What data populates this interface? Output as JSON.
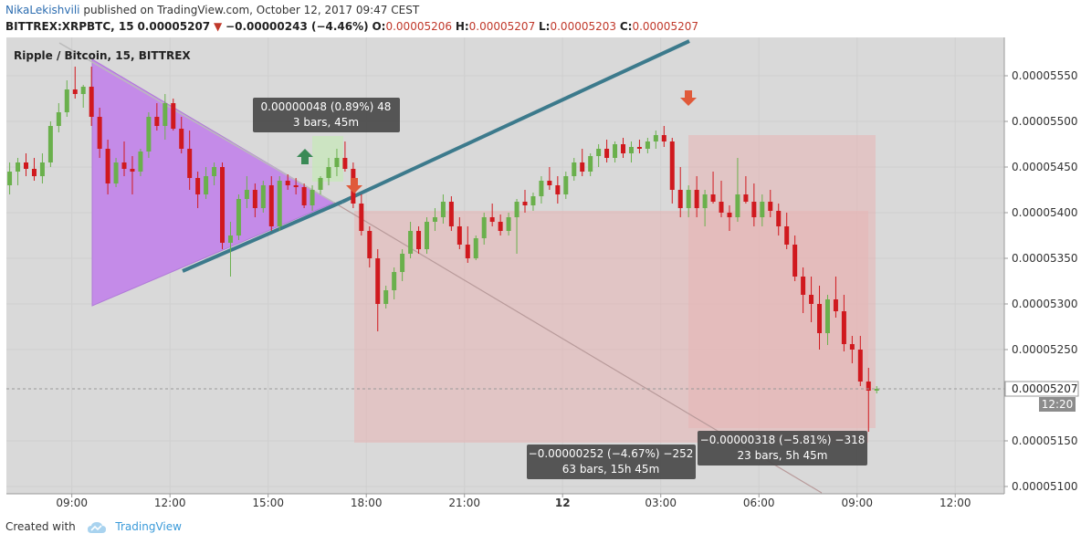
{
  "header": {
    "author": "NikaLekishvili",
    "published": "published on TradingView.com, October 12, 2017 09:47 CEST",
    "symbol": "BITTREX:XRPBTC, 15",
    "last": "0.00005207",
    "change": "−0.00000243 (−4.46%)",
    "o_label": "O:",
    "o_value": "0.00005206",
    "h_label": "H:",
    "h_value": "0.00005207",
    "l_label": "L:",
    "l_value": "0.00005203",
    "c_label": "C:",
    "c_value": "0.00005207"
  },
  "chart_data": {
    "type": "candlestick",
    "title": "Ripple / Bitcoin, 15, BITTREX",
    "y_ticks": [
      "0.00005550",
      "0.00005500",
      "0.00005450",
      "0.00005400",
      "0.00005350",
      "0.00005300",
      "0.00005250",
      "0.00005150",
      "0.00005100"
    ],
    "y_tick_values": [
      5550,
      5500,
      5450,
      5400,
      5350,
      5300,
      5250,
      5150,
      5100
    ],
    "ylim": [
      5092,
      5592
    ],
    "x_ticks": [
      {
        "label": "09:00",
        "t": 9.0
      },
      {
        "label": "12:00",
        "t": 12.0
      },
      {
        "label": "15:00",
        "t": 15.0
      },
      {
        "label": "18:00",
        "t": 18.0
      },
      {
        "label": "21:00",
        "t": 21.0
      },
      {
        "label": "12",
        "t": 24.0,
        "bold": true
      },
      {
        "label": "03:00",
        "t": 27.0
      },
      {
        "label": "06:00",
        "t": 30.0
      },
      {
        "label": "09:00",
        "t": 33.0
      },
      {
        "label": "12:00",
        "t": 36.0
      }
    ],
    "xlim": [
      7.0,
      37.5
    ],
    "last_price_label": "0.00005207",
    "last_price_value": 5207,
    "countdown": "12:20",
    "colors": {
      "up": "#6ab04c",
      "down": "#d0191e",
      "trendline": "#3c7a8c",
      "triangle": "#c48be8",
      "short_zone": "#e8b4b4",
      "last_line": "#999999"
    },
    "candles": [
      [
        7.1,
        5430,
        5455,
        5420,
        5445
      ],
      [
        7.35,
        5445,
        5460,
        5430,
        5455
      ],
      [
        7.6,
        5455,
        5465,
        5440,
        5448
      ],
      [
        7.85,
        5448,
        5460,
        5435,
        5440
      ],
      [
        8.1,
        5440,
        5465,
        5432,
        5455
      ],
      [
        8.35,
        5455,
        5500,
        5450,
        5495
      ],
      [
        8.6,
        5495,
        5520,
        5488,
        5510
      ],
      [
        8.85,
        5510,
        5545,
        5505,
        5535
      ],
      [
        9.1,
        5535,
        5560,
        5525,
        5530
      ],
      [
        9.35,
        5530,
        5540,
        5515,
        5538
      ],
      [
        9.6,
        5538,
        5560,
        5495,
        5505
      ],
      [
        9.85,
        5505,
        5515,
        5460,
        5470
      ],
      [
        10.1,
        5470,
        5480,
        5420,
        5432
      ],
      [
        10.35,
        5432,
        5460,
        5428,
        5455
      ],
      [
        10.6,
        5455,
        5478,
        5440,
        5448
      ],
      [
        10.85,
        5448,
        5462,
        5420,
        5445
      ],
      [
        11.1,
        5445,
        5470,
        5440,
        5467
      ],
      [
        11.35,
        5467,
        5510,
        5460,
        5505
      ],
      [
        11.6,
        5505,
        5520,
        5490,
        5495
      ],
      [
        11.85,
        5495,
        5530,
        5480,
        5520
      ],
      [
        12.1,
        5520,
        5525,
        5490,
        5492
      ],
      [
        12.35,
        5492,
        5505,
        5465,
        5470
      ],
      [
        12.6,
        5470,
        5490,
        5425,
        5438
      ],
      [
        12.85,
        5438,
        5445,
        5405,
        5420
      ],
      [
        13.1,
        5420,
        5450,
        5415,
        5440
      ],
      [
        13.35,
        5440,
        5455,
        5430,
        5450
      ],
      [
        13.6,
        5450,
        5455,
        5360,
        5367
      ],
      [
        13.85,
        5367,
        5390,
        5330,
        5375
      ],
      [
        14.1,
        5375,
        5420,
        5370,
        5415
      ],
      [
        14.35,
        5415,
        5440,
        5405,
        5425
      ],
      [
        14.6,
        5425,
        5432,
        5395,
        5405
      ],
      [
        14.85,
        5405,
        5435,
        5400,
        5430
      ],
      [
        15.1,
        5430,
        5440,
        5380,
        5385
      ],
      [
        15.35,
        5385,
        5440,
        5380,
        5435
      ],
      [
        15.6,
        5435,
        5442,
        5425,
        5430
      ],
      [
        15.85,
        5430,
        5438,
        5420,
        5428
      ],
      [
        16.1,
        5428,
        5432,
        5405,
        5408
      ],
      [
        16.35,
        5408,
        5430,
        5402,
        5425
      ],
      [
        16.6,
        5425,
        5440,
        5420,
        5438
      ],
      [
        16.85,
        5438,
        5460,
        5430,
        5450
      ],
      [
        17.1,
        5450,
        5470,
        5440,
        5460
      ],
      [
        17.35,
        5460,
        5478,
        5445,
        5448
      ],
      [
        17.6,
        5448,
        5455,
        5405,
        5410
      ],
      [
        17.85,
        5410,
        5420,
        5375,
        5380
      ],
      [
        18.1,
        5380,
        5385,
        5340,
        5350
      ],
      [
        18.35,
        5350,
        5360,
        5270,
        5300
      ],
      [
        18.6,
        5300,
        5320,
        5295,
        5315
      ],
      [
        18.85,
        5315,
        5340,
        5305,
        5335
      ],
      [
        19.1,
        5335,
        5360,
        5325,
        5355
      ],
      [
        19.35,
        5355,
        5390,
        5350,
        5380
      ],
      [
        19.6,
        5380,
        5385,
        5355,
        5360
      ],
      [
        19.85,
        5360,
        5395,
        5355,
        5390
      ],
      [
        20.1,
        5390,
        5405,
        5380,
        5395
      ],
      [
        20.35,
        5395,
        5420,
        5388,
        5412
      ],
      [
        20.6,
        5412,
        5418,
        5380,
        5385
      ],
      [
        20.85,
        5385,
        5395,
        5360,
        5365
      ],
      [
        21.1,
        5365,
        5385,
        5345,
        5350
      ],
      [
        21.35,
        5350,
        5375,
        5348,
        5372
      ],
      [
        21.6,
        5372,
        5400,
        5365,
        5395
      ],
      [
        21.85,
        5395,
        5410,
        5385,
        5390
      ],
      [
        22.1,
        5390,
        5398,
        5375,
        5380
      ],
      [
        22.35,
        5380,
        5400,
        5375,
        5395
      ],
      [
        22.6,
        5395,
        5415,
        5355,
        5412
      ],
      [
        22.85,
        5412,
        5425,
        5400,
        5408
      ],
      [
        23.1,
        5408,
        5422,
        5402,
        5418
      ],
      [
        23.35,
        5418,
        5440,
        5410,
        5435
      ],
      [
        23.6,
        5435,
        5450,
        5425,
        5430
      ],
      [
        23.85,
        5430,
        5440,
        5410,
        5420
      ],
      [
        24.1,
        5420,
        5445,
        5415,
        5440
      ],
      [
        24.35,
        5440,
        5460,
        5435,
        5455
      ],
      [
        24.6,
        5455,
        5470,
        5440,
        5445
      ],
      [
        24.85,
        5445,
        5465,
        5440,
        5462
      ],
      [
        25.1,
        5462,
        5475,
        5450,
        5470
      ],
      [
        25.35,
        5470,
        5480,
        5455,
        5460
      ],
      [
        25.6,
        5460,
        5478,
        5455,
        5475
      ],
      [
        25.85,
        5475,
        5482,
        5460,
        5465
      ],
      [
        26.1,
        5465,
        5478,
        5455,
        5472
      ],
      [
        26.35,
        5472,
        5480,
        5465,
        5470
      ],
      [
        26.6,
        5470,
        5482,
        5465,
        5478
      ],
      [
        26.85,
        5478,
        5490,
        5470,
        5485
      ],
      [
        27.1,
        5485,
        5495,
        5472,
        5478
      ],
      [
        27.35,
        5478,
        5482,
        5410,
        5425
      ],
      [
        27.6,
        5425,
        5450,
        5395,
        5405
      ],
      [
        27.85,
        5405,
        5430,
        5395,
        5425
      ],
      [
        28.1,
        5425,
        5440,
        5395,
        5405
      ],
      [
        28.35,
        5405,
        5425,
        5385,
        5420
      ],
      [
        28.6,
        5420,
        5445,
        5410,
        5412
      ],
      [
        28.85,
        5412,
        5435,
        5395,
        5400
      ],
      [
        29.1,
        5400,
        5408,
        5380,
        5395
      ],
      [
        29.35,
        5395,
        5460,
        5390,
        5420
      ],
      [
        29.6,
        5420,
        5440,
        5410,
        5412
      ],
      [
        29.85,
        5412,
        5432,
        5385,
        5395
      ],
      [
        30.1,
        5395,
        5420,
        5385,
        5412
      ],
      [
        30.35,
        5412,
        5425,
        5395,
        5402
      ],
      [
        30.6,
        5402,
        5410,
        5375,
        5385
      ],
      [
        30.85,
        5385,
        5400,
        5360,
        5365
      ],
      [
        31.1,
        5365,
        5375,
        5325,
        5330
      ],
      [
        31.35,
        5330,
        5340,
        5290,
        5310
      ],
      [
        31.6,
        5310,
        5330,
        5280,
        5300
      ],
      [
        31.85,
        5300,
        5320,
        5250,
        5268
      ],
      [
        32.1,
        5268,
        5310,
        5255,
        5305
      ],
      [
        32.35,
        5305,
        5330,
        5285,
        5292
      ],
      [
        32.6,
        5292,
        5310,
        5248,
        5256
      ],
      [
        32.85,
        5256,
        5265,
        5235,
        5250
      ],
      [
        33.1,
        5250,
        5265,
        5210,
        5215
      ],
      [
        33.35,
        5215,
        5230,
        5160,
        5205
      ],
      [
        33.6,
        5205,
        5210,
        5202,
        5207
      ]
    ],
    "annotations": {
      "top_box": {
        "line1": "0.00000048 (0.89%) 48",
        "line2": "3 bars, 45m"
      },
      "bottom_box_1": {
        "line1": "−0.00000252 (−4.67%) −252",
        "line2": "63 bars, 15h 45m"
      },
      "bottom_box_2": {
        "line1": "−0.00000318 (−5.81%) −318",
        "line2": "23 bars, 5h 45m"
      }
    }
  },
  "footer": {
    "created_with": "Created with",
    "brand": "TradingView"
  }
}
